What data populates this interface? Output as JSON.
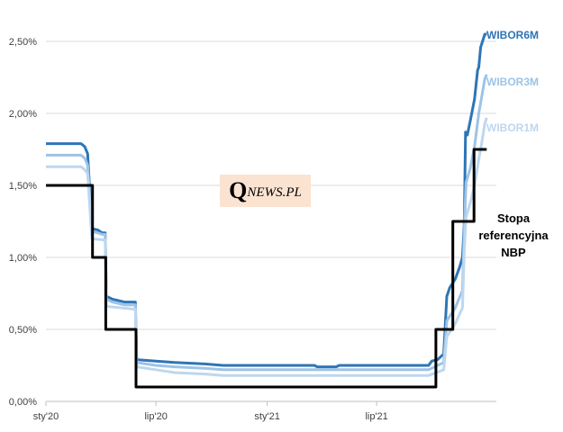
{
  "watermark": {
    "q": "Q",
    "rest": "NEWS.PL"
  },
  "chart_data": {
    "type": "line",
    "y_unit": "%",
    "ylim": [
      0,
      2.5
    ],
    "y_ticks": [
      "0,00%",
      "0,50%",
      "1,00%",
      "1,50%",
      "2,00%",
      "2,50%"
    ],
    "y_tick_values": [
      0,
      0.5,
      1.0,
      1.5,
      2.0,
      2.5
    ],
    "xlim": [
      "2020-01-01",
      "2022-01-15"
    ],
    "x_ticks": [
      "sty'20",
      "lip'20",
      "sty'21",
      "lip'21"
    ],
    "x_tick_values": [
      "2020-01-01",
      "2020-07-01",
      "2021-01-01",
      "2021-07-01"
    ],
    "grid": "horizontal",
    "series": [
      {
        "name": "WIBOR6M",
        "label": "WIBOR6M",
        "color": "#2e75b6",
        "step": false,
        "points": [
          [
            "2020-01-01",
            1.79
          ],
          [
            "2020-02-28",
            1.79
          ],
          [
            "2020-03-05",
            1.77
          ],
          [
            "2020-03-10",
            1.72
          ],
          [
            "2020-03-17",
            1.2
          ],
          [
            "2020-03-27",
            1.19
          ],
          [
            "2020-04-03",
            1.17
          ],
          [
            "2020-04-08",
            1.17
          ],
          [
            "2020-04-10",
            0.73
          ],
          [
            "2020-04-20",
            0.71
          ],
          [
            "2020-05-10",
            0.69
          ],
          [
            "2020-05-28",
            0.69
          ],
          [
            "2020-05-30",
            0.29
          ],
          [
            "2020-07-01",
            0.28
          ],
          [
            "2020-08-01",
            0.27
          ],
          [
            "2020-09-20",
            0.26
          ],
          [
            "2020-10-20",
            0.25
          ],
          [
            "2021-03-20",
            0.25
          ],
          [
            "2021-03-25",
            0.24
          ],
          [
            "2021-04-25",
            0.24
          ],
          [
            "2021-04-30",
            0.25
          ],
          [
            "2021-09-25",
            0.25
          ],
          [
            "2021-09-30",
            0.28
          ],
          [
            "2021-10-10",
            0.29
          ],
          [
            "2021-10-20",
            0.33
          ],
          [
            "2021-10-25",
            0.73
          ],
          [
            "2021-10-30",
            0.79
          ],
          [
            "2021-11-08",
            0.85
          ],
          [
            "2021-11-15",
            0.93
          ],
          [
            "2021-11-20",
            1.0
          ],
          [
            "2021-11-23",
            1.24
          ],
          [
            "2021-11-25",
            1.87
          ],
          [
            "2021-11-28",
            1.85
          ],
          [
            "2021-12-03",
            1.95
          ],
          [
            "2021-12-10",
            2.1
          ],
          [
            "2021-12-15",
            2.3
          ],
          [
            "2021-12-17",
            2.32
          ],
          [
            "2021-12-20",
            2.46
          ],
          [
            "2021-12-27",
            2.55
          ],
          [
            "2021-12-30",
            2.55
          ]
        ]
      },
      {
        "name": "WIBOR3M",
        "label": "WIBOR3M",
        "color": "#9dc3e6",
        "step": false,
        "points": [
          [
            "2020-01-01",
            1.71
          ],
          [
            "2020-02-28",
            1.71
          ],
          [
            "2020-03-05",
            1.69
          ],
          [
            "2020-03-10",
            1.64
          ],
          [
            "2020-03-17",
            1.18
          ],
          [
            "2020-03-27",
            1.17
          ],
          [
            "2020-04-03",
            1.16
          ],
          [
            "2020-04-08",
            1.16
          ],
          [
            "2020-04-10",
            0.71
          ],
          [
            "2020-04-20",
            0.69
          ],
          [
            "2020-05-10",
            0.67
          ],
          [
            "2020-05-28",
            0.67
          ],
          [
            "2020-05-30",
            0.27
          ],
          [
            "2020-07-01",
            0.25
          ],
          [
            "2020-08-01",
            0.24
          ],
          [
            "2020-09-20",
            0.23
          ],
          [
            "2020-10-20",
            0.22
          ],
          [
            "2021-09-25",
            0.22
          ],
          [
            "2021-09-30",
            0.23
          ],
          [
            "2021-10-20",
            0.27
          ],
          [
            "2021-10-25",
            0.56
          ],
          [
            "2021-11-08",
            0.65
          ],
          [
            "2021-11-20",
            0.77
          ],
          [
            "2021-11-23",
            1.2
          ],
          [
            "2021-11-26",
            1.52
          ],
          [
            "2021-12-03",
            1.62
          ],
          [
            "2021-12-10",
            1.77
          ],
          [
            "2021-12-17",
            2.0
          ],
          [
            "2021-12-22",
            2.12
          ],
          [
            "2021-12-27",
            2.24
          ],
          [
            "2021-12-30",
            2.27
          ]
        ]
      },
      {
        "name": "WIBOR1M",
        "label": "WIBOR1M",
        "color": "#bdd7ee",
        "step": false,
        "points": [
          [
            "2020-01-01",
            1.63
          ],
          [
            "2020-02-28",
            1.63
          ],
          [
            "2020-03-05",
            1.61
          ],
          [
            "2020-03-10",
            1.58
          ],
          [
            "2020-03-17",
            1.13
          ],
          [
            "2020-04-08",
            1.12
          ],
          [
            "2020-04-10",
            0.66
          ],
          [
            "2020-05-28",
            0.64
          ],
          [
            "2020-05-30",
            0.24
          ],
          [
            "2020-07-01",
            0.22
          ],
          [
            "2020-08-01",
            0.2
          ],
          [
            "2020-09-20",
            0.19
          ],
          [
            "2020-10-20",
            0.18
          ],
          [
            "2021-09-25",
            0.18
          ],
          [
            "2021-10-20",
            0.22
          ],
          [
            "2021-10-25",
            0.45
          ],
          [
            "2021-11-08",
            0.54
          ],
          [
            "2021-11-20",
            0.65
          ],
          [
            "2021-11-23",
            1.05
          ],
          [
            "2021-11-26",
            1.28
          ],
          [
            "2021-12-03",
            1.38
          ],
          [
            "2021-12-10",
            1.5
          ],
          [
            "2021-12-17",
            1.68
          ],
          [
            "2021-12-22",
            1.8
          ],
          [
            "2021-12-27",
            1.93
          ],
          [
            "2021-12-30",
            1.97
          ]
        ]
      },
      {
        "name": "Stopa referencyjna NBP",
        "label_lines": [
          "Stopa",
          "referencyjna",
          "NBP"
        ],
        "color": "#000000",
        "step": true,
        "points": [
          [
            "2020-01-01",
            1.5
          ],
          [
            "2020-03-18",
            1.0
          ],
          [
            "2020-04-09",
            0.5
          ],
          [
            "2020-05-29",
            0.1
          ],
          [
            "2021-10-07",
            0.5
          ],
          [
            "2021-11-04",
            1.25
          ],
          [
            "2021-12-09",
            1.75
          ],
          [
            "2021-12-30",
            1.75
          ]
        ]
      }
    ]
  }
}
